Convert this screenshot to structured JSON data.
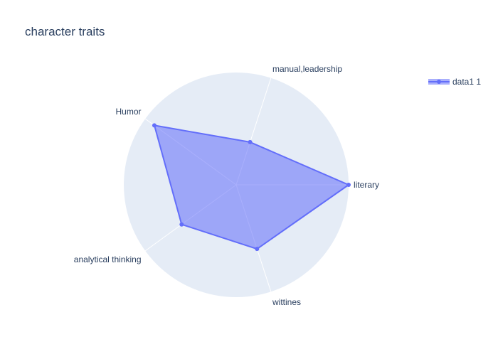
{
  "chart_data": {
    "type": "radar",
    "title": "character traits",
    "categories": [
      "literary",
      "manual,leadership",
      "Humor",
      "analytical thinking",
      "wittines"
    ],
    "series": [
      {
        "name": "data1 1",
        "values": [
          5,
          2,
          4.5,
          3,
          3
        ],
        "color": "#636efa",
        "fill": "rgba(99,110,250,0.55)"
      }
    ],
    "radial_range": [
      0,
      5
    ],
    "angular_start_deg": 0,
    "angular_direction": "counterclockwise",
    "polar_bg": "#e5ecf6",
    "grid": true,
    "legend_position": "top-right"
  }
}
